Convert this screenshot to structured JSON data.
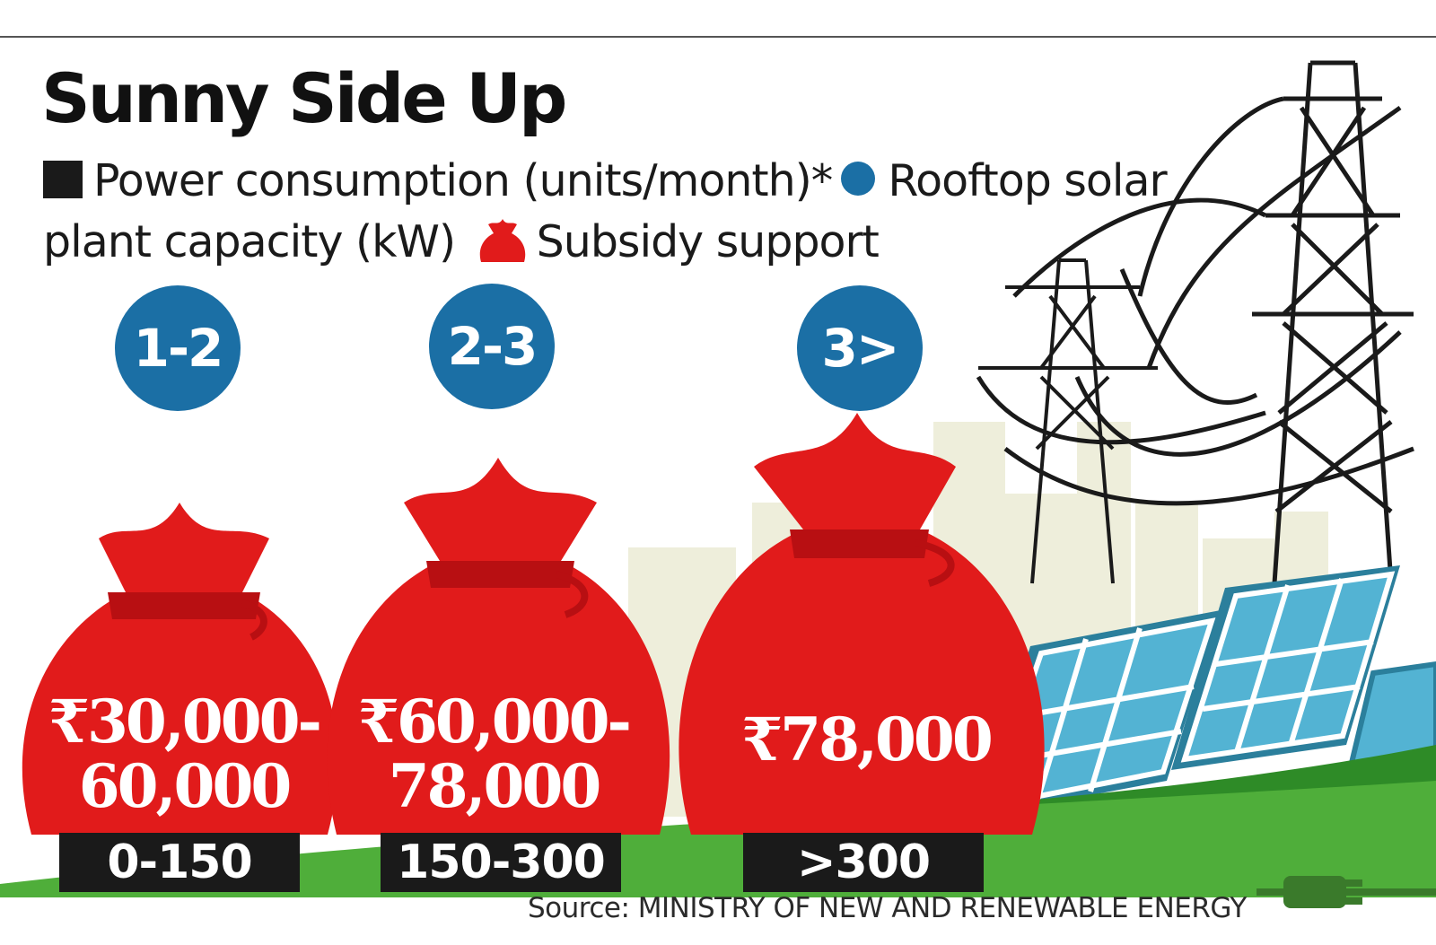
{
  "title": "Sunny Side Up",
  "legend": {
    "consumption_label": "Power consumption (units/month)*",
    "capacity_label": "Rooftop solar plant capacity (kW)",
    "subsidy_label": "Subsidy support"
  },
  "colors": {
    "capacity_badge": "#1b6fa5",
    "subsidy_bag": "#e11b1b",
    "category_box": "#1a1a1a",
    "grass": "#3a9a2b",
    "solar_panel": "#3fa4c8"
  },
  "icons": [
    "money-bag-icon",
    "transmission-tower-icon",
    "solar-panel-icon",
    "power-plug-icon"
  ],
  "chart_data": {
    "type": "table",
    "title": "Sunny Side Up",
    "columns": [
      "Power consumption (units/month)*",
      "Rooftop solar plant capacity (kW)",
      "Subsidy support"
    ],
    "rows": [
      {
        "consumption": "0-150",
        "capacity": "1-2",
        "subsidy_line1": "₹30,000-",
        "subsidy_line2": "60,000"
      },
      {
        "consumption": "150-300",
        "capacity": "2-3",
        "subsidy_line1": "₹60,000-",
        "subsidy_line2": "78,000"
      },
      {
        "consumption": ">300",
        "capacity": "3>",
        "subsidy_line1": "₹78,000",
        "subsidy_line2": ""
      }
    ]
  },
  "source": "Source: MINISTRY OF NEW AND RENEWABLE ENERGY"
}
